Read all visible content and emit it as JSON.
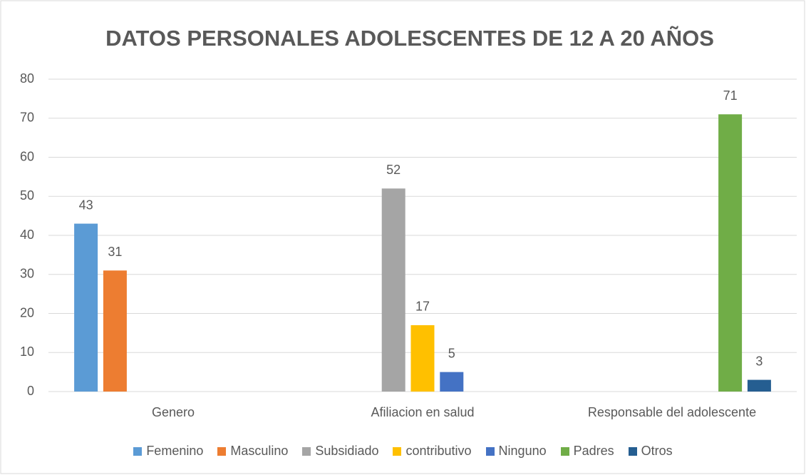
{
  "chart_data": {
    "type": "bar",
    "title": "DATOS PERSONALES ADOLESCENTES DE 12 A 20 AÑOS",
    "categories": [
      "Genero",
      "Afiliacion en salud",
      "Responsable del adolescente"
    ],
    "series": [
      {
        "name": "Femenino",
        "color": "#5b9bd5",
        "values": [
          43,
          null,
          null
        ]
      },
      {
        "name": "Masculino",
        "color": "#ed7d31",
        "values": [
          31,
          null,
          null
        ]
      },
      {
        "name": "Subsidiado",
        "color": "#a5a5a5",
        "values": [
          null,
          52,
          null
        ]
      },
      {
        "name": "contributivo",
        "color": "#ffc000",
        "values": [
          null,
          17,
          null
        ]
      },
      {
        "name": "Ninguno",
        "color": "#4472c4",
        "values": [
          null,
          5,
          null
        ]
      },
      {
        "name": "Padres",
        "color": "#70ad47",
        "values": [
          null,
          null,
          71
        ]
      },
      {
        "name": "Otros",
        "color": "#255e91",
        "values": [
          null,
          null,
          3
        ]
      }
    ],
    "ylim": [
      0,
      80
    ],
    "yticks": [
      0,
      10,
      20,
      30,
      40,
      50,
      60,
      70,
      80
    ],
    "grid": true,
    "legend": "bottom"
  }
}
